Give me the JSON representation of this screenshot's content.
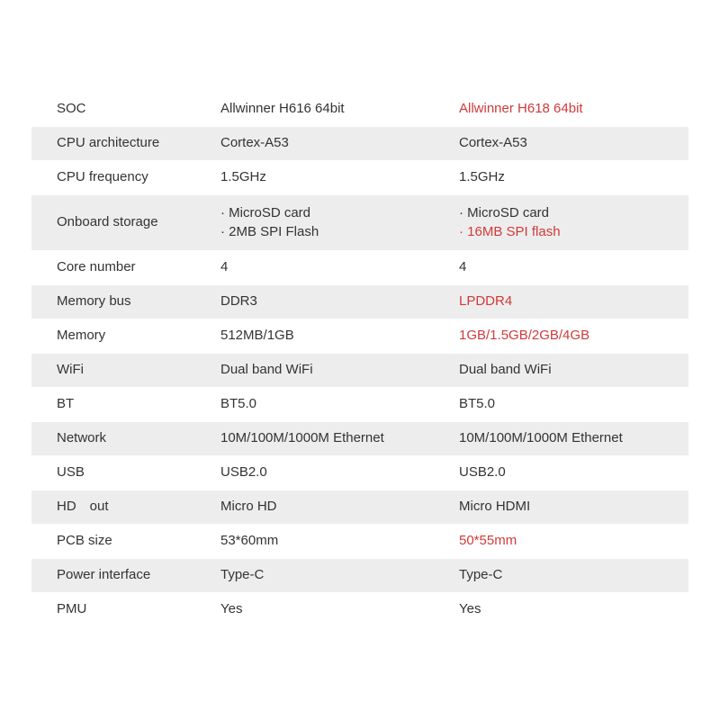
{
  "table": {
    "type": "table",
    "background_color": "#ffffff",
    "shaded_row_color": "#eeeded",
    "text_color": "#333333",
    "highlight_color": "#d13a3a",
    "font_size": 15,
    "rows": [
      {
        "label": "SOC",
        "col1": "Allwinner H616 64bit",
        "col2": "Allwinner H618 64bit",
        "col2_hl": true,
        "shaded": false
      },
      {
        "label": "CPU architecture",
        "col1": "Cortex-A53",
        "col2": "Cortex-A53",
        "shaded": true
      },
      {
        "label": "CPU frequency",
        "col1": "1.5GHz",
        "col2": "1.5GHz",
        "shaded": false
      },
      {
        "label": "Onboard storage",
        "col1_lines": [
          "· MicroSD card",
          "· 2MB SPI Flash"
        ],
        "col2_lines": [
          {
            "text": "· MicroSD card",
            "hl": false
          },
          {
            "text": "· 16MB SPI flash",
            "hl": true
          }
        ],
        "tall": true,
        "shaded": true
      },
      {
        "label": "Core number",
        "col1": "4",
        "col2": "4",
        "shaded": false
      },
      {
        "label": "Memory bus",
        "col1": "DDR3",
        "col2": "LPDDR4",
        "col2_hl": true,
        "shaded": true
      },
      {
        "label": "Memory",
        "col1": "512MB/1GB",
        "col2": "1GB/1.5GB/2GB/4GB",
        "col2_hl": true,
        "shaded": false
      },
      {
        "label": "WiFi",
        "col1": "Dual band WiFi",
        "col2": "Dual band WiFi",
        "shaded": true
      },
      {
        "label": "BT",
        "col1": "BT5.0",
        "col2": "BT5.0",
        "shaded": false
      },
      {
        "label": "Network",
        "col1": "10M/100M/1000M Ethernet",
        "col2": "10M/100M/1000M Ethernet",
        "shaded": true
      },
      {
        "label": "USB",
        "col1": "USB2.0",
        "col2": "USB2.0",
        "shaded": false
      },
      {
        "label": "HD out",
        "col1": "Micro HD",
        "col2": "Micro HDMI",
        "shaded": true
      },
      {
        "label": "PCB size",
        "col1": "53*60mm",
        "col2": "50*55mm",
        "col2_hl": true,
        "shaded": false
      },
      {
        "label": "Power interface",
        "col1": "Type-C",
        "col2": "Type-C",
        "shaded": true
      },
      {
        "label": "PMU",
        "col1": "Yes",
        "col2": "Yes",
        "shaded": false
      }
    ]
  }
}
